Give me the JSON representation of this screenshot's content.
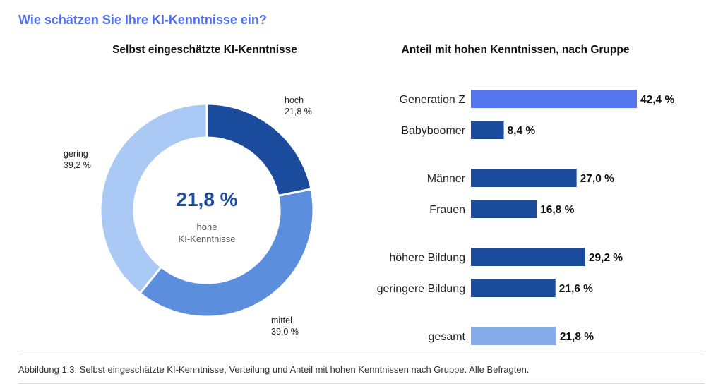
{
  "heading": "Wie schätzen Sie Ihre KI-Kenntnisse ein?",
  "caption": "Abbildung 1.3: Selbst eingeschätzte KI-Kenntnisse, Verteilung und Anteil mit hohen Kenntnissen nach Gruppe. Alle Befragten.",
  "chart_data": [
    {
      "type": "pie",
      "title": "Selbst eingeschätzte KI-Kenntnisse",
      "center_value": "21,8 %",
      "center_label": "hohe\nKI-Kenntnisse",
      "slices": [
        {
          "label": "hoch",
          "value": 21.8,
          "value_label": "21,8 %",
          "color": "#1b4b9c"
        },
        {
          "label": "mittel",
          "value": 39.0,
          "value_label": "39,0 %",
          "color": "#5b8fdd"
        },
        {
          "label": "gering",
          "value": 39.2,
          "value_label": "39,2 %",
          "color": "#abc9f5"
        }
      ]
    },
    {
      "type": "bar",
      "orientation": "horizontal",
      "title": "Anteil mit hohen Kenntnissen, nach Gruppe",
      "xlim": [
        0,
        42.4
      ],
      "categories": [
        "Generation Z",
        "Babyboomer",
        "Männer",
        "Frauen",
        "höhere Bildung",
        "geringere Bildung",
        "gesamt"
      ],
      "values": [
        42.4,
        8.4,
        27.0,
        16.8,
        29.2,
        21.6,
        21.8
      ],
      "value_labels": [
        "42,4 %",
        "8,4 %",
        "27,0 %",
        "16,8 %",
        "29,2 %",
        "21,6 %",
        "21,8 %"
      ],
      "colors": [
        "#5577f2",
        "#1b4b9c",
        "#1b4b9c",
        "#1b4b9c",
        "#1b4b9c",
        "#1b4b9c",
        "#86acec"
      ]
    }
  ]
}
